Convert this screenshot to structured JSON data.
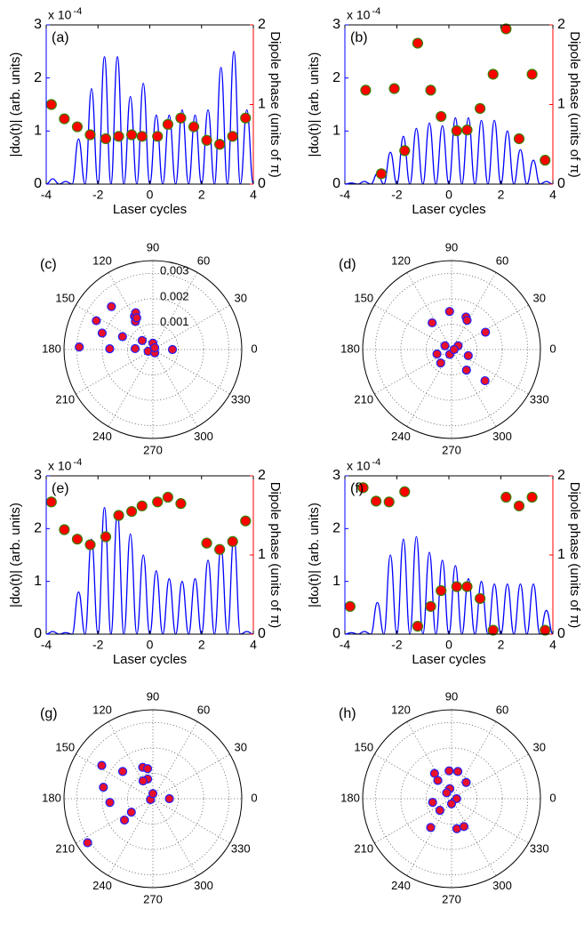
{
  "chart_data": [
    {
      "type": "dual",
      "panel_label": "(a)",
      "xlabel": "Laser cycles",
      "ylabel": "|dω(t)| (arb. units)",
      "y2label": "Dipole phase (units of π)",
      "multiplier": "x 10",
      "multiplier_exponent": "-4",
      "xlim": [
        -4,
        4
      ],
      "xticks": [
        -4,
        -2,
        0,
        2,
        4
      ],
      "ylim": [
        0,
        3
      ],
      "yticks": [
        0,
        1,
        2,
        3
      ],
      "y2lim": [
        0,
        2
      ],
      "y2ticks": [
        0,
        1,
        2
      ],
      "y_color": "#0000ff",
      "y2_color": "#ff0000",
      "series": [
        {
          "kind": "line",
          "color": "#0000ff",
          "x": [
            -4,
            -3.75,
            -3.5,
            -3.25,
            -3,
            -2.75,
            -2.5,
            -2.25,
            -2,
            -1.75,
            -1.5,
            -1.25,
            -1,
            -0.75,
            -0.5,
            -0.25,
            0,
            0.25,
            0.5,
            0.75,
            1,
            1.25,
            1.5,
            1.75,
            2,
            2.25,
            2.5,
            2.75,
            3,
            3.25,
            3.5,
            3.75,
            4
          ],
          "values": [
            0,
            0.1,
            0,
            0.05,
            0,
            0.85,
            0,
            1.8,
            0,
            2.4,
            0,
            2.4,
            0,
            1.65,
            0,
            1.9,
            0,
            1.3,
            0,
            1.3,
            0,
            1.4,
            0,
            1.3,
            0,
            1.4,
            0,
            2.2,
            0,
            2.5,
            0,
            1.4,
            0
          ]
        },
        {
          "kind": "scatter",
          "axis": "y2",
          "color": "#ff0000",
          "edge": "#3b7d00",
          "x": [
            -3.8,
            -3.3,
            -2.8,
            -2.3,
            -1.7,
            -1.2,
            -0.7,
            -0.3,
            0.3,
            0.7,
            1.2,
            1.7,
            2.2,
            2.7,
            3.2,
            3.7
          ],
          "values": [
            1.0,
            0.82,
            0.72,
            0.62,
            0.57,
            0.6,
            0.62,
            0.6,
            0.6,
            0.75,
            0.83,
            0.72,
            0.55,
            0.5,
            0.6,
            0.83
          ]
        }
      ]
    },
    {
      "type": "dual",
      "panel_label": "(b)",
      "xlabel": "Laser cycles",
      "ylabel": "|dω(t)| (arb. units)",
      "y2label": "Dipole phase (units of π)",
      "multiplier": "x 10",
      "multiplier_exponent": "-4",
      "xlim": [
        -4,
        4
      ],
      "xticks": [
        -4,
        -2,
        0,
        2,
        4
      ],
      "ylim": [
        0,
        3
      ],
      "yticks": [
        0,
        1,
        2,
        3
      ],
      "y2lim": [
        0,
        2
      ],
      "y2ticks": [
        0,
        1,
        2
      ],
      "y_color": "#0000ff",
      "y2_color": "#ff0000",
      "series": [
        {
          "kind": "line",
          "color": "#0000ff",
          "x": [
            -4,
            -3.75,
            -3.5,
            -3.25,
            -3,
            -2.75,
            -2.5,
            -2.25,
            -2,
            -1.75,
            -1.5,
            -1.25,
            -1,
            -0.75,
            -0.5,
            -0.25,
            0,
            0.25,
            0.5,
            0.75,
            1,
            1.25,
            1.5,
            1.75,
            2,
            2.25,
            2.5,
            2.75,
            3,
            3.25,
            3.5,
            3.75,
            4
          ],
          "values": [
            0,
            0.02,
            0,
            0.05,
            0,
            0.2,
            0,
            0.6,
            0,
            0.9,
            0,
            1.05,
            0,
            1.15,
            0,
            1.1,
            0,
            1.25,
            0,
            1.25,
            0,
            1.2,
            0,
            1.2,
            0,
            1.0,
            0,
            0.65,
            0,
            0.45,
            0,
            0.05,
            0
          ]
        },
        {
          "kind": "scatter",
          "axis": "y2",
          "color": "#ff0000",
          "edge": "#3b7d00",
          "x": [
            -3.2,
            -2.6,
            -2.1,
            -1.7,
            -1.2,
            -0.7,
            -0.3,
            0.3,
            0.7,
            1.2,
            1.7,
            2.2,
            2.7,
            3.2,
            3.7
          ],
          "values": [
            1.18,
            0.13,
            1.2,
            0.42,
            1.77,
            1.18,
            0.85,
            0.67,
            0.68,
            0.95,
            1.38,
            1.95,
            0.57,
            1.38,
            0.3
          ]
        }
      ]
    },
    {
      "type": "polar",
      "panel_label": "(c)",
      "rlim": [
        0,
        0.0035
      ],
      "rticks": [
        0.001,
        0.002,
        0.003
      ],
      "show_rtick_labels": true,
      "thetaticks": [
        0,
        30,
        60,
        90,
        120,
        150,
        180,
        210,
        240,
        270,
        300,
        330
      ],
      "color": "#e8102a",
      "edge": "#2020ff",
      "theta": [
        134,
        119,
        122,
        115,
        117,
        153,
        162,
        157,
        179,
        178,
        140,
        177,
        0,
        90,
        200,
        300,
        45
      ],
      "r": [
        0.00235,
        0.0015,
        0.0013,
        0.0016,
        0.0014,
        0.0025,
        0.0021,
        0.0013,
        0.0017,
        0.0029,
        0.00055,
        0.0007,
        0.00077,
        0.00025,
        0.0002,
        0.00015,
        0.0001
      ]
    },
    {
      "type": "polar",
      "panel_label": "(d)",
      "rlim": [
        0,
        0.0035
      ],
      "rticks": [
        0.001,
        0.002,
        0.003
      ],
      "show_rtick_labels": false,
      "thetaticks": [
        0,
        30,
        60,
        90,
        120,
        150,
        180,
        210,
        240,
        270,
        300,
        330
      ],
      "color": "#e8102a",
      "edge": "#2020ff",
      "theta": [
        93,
        27,
        66,
        62,
        126,
        197,
        231,
        340,
        306,
        317,
        150,
        30,
        250,
        0
      ],
      "r": [
        0.0015,
        0.0015,
        0.0014,
        0.0013,
        0.0013,
        0.0006,
        0.00068,
        0.0007,
        0.001,
        0.0018,
        0.0003,
        0.0003,
        0.0002,
        0.0001
      ]
    },
    {
      "type": "dual",
      "panel_label": "(e)",
      "xlabel": "Laser cycles",
      "ylabel": "|dω(t)| (arb. units)",
      "y2label": "Dipole phase (units of π)",
      "multiplier": "x 10",
      "multiplier_exponent": "-4",
      "xlim": [
        -4,
        4
      ],
      "xticks": [
        -4,
        -2,
        0,
        2,
        4
      ],
      "ylim": [
        0,
        3
      ],
      "yticks": [
        0,
        1,
        2,
        3
      ],
      "y2lim": [
        0,
        2
      ],
      "y2ticks": [
        0,
        1,
        2
      ],
      "y_color": "#0000ff",
      "y2_color": "#ff0000",
      "series": [
        {
          "kind": "line",
          "color": "#0000ff",
          "x": [
            -4,
            -3.75,
            -3.5,
            -3.25,
            -3,
            -2.75,
            -2.5,
            -2.25,
            -2,
            -1.75,
            -1.5,
            -1.25,
            -1,
            -0.75,
            -0.5,
            -0.25,
            0,
            0.25,
            0.5,
            0.75,
            1,
            1.25,
            1.5,
            1.75,
            2,
            2.25,
            2.5,
            2.75,
            3,
            3.25,
            3.5,
            3.75,
            4
          ],
          "values": [
            0,
            0.05,
            0,
            0.03,
            0,
            0.8,
            0,
            1.8,
            0,
            2.4,
            0,
            2.3,
            0,
            1.9,
            0,
            1.5,
            0,
            1.2,
            0,
            1.05,
            0,
            1.0,
            0,
            1.05,
            0,
            1.4,
            0,
            1.65,
            0,
            1.85,
            0,
            0.05,
            0
          ]
        },
        {
          "kind": "scatter",
          "axis": "y2",
          "color": "#ff0000",
          "edge": "#3b7d00",
          "x": [
            -3.8,
            -3.3,
            -2.8,
            -2.3,
            -1.7,
            -1.2,
            -0.7,
            -0.3,
            0.3,
            0.7,
            1.2,
            2.2,
            2.7,
            3.2,
            3.7
          ],
          "values": [
            1.67,
            1.32,
            1.2,
            1.13,
            1.23,
            1.5,
            1.55,
            1.62,
            1.67,
            1.73,
            1.65,
            1.15,
            1.07,
            1.17,
            1.43
          ]
        }
      ]
    },
    {
      "type": "dual",
      "panel_label": "(f)",
      "xlabel": "Laser cycles",
      "ylabel": "|dω(t)| (arb. units)",
      "y2label": "Dipole phase (units of π)",
      "multiplier": "x 10",
      "multiplier_exponent": "-4",
      "xlim": [
        -4,
        4
      ],
      "xticks": [
        -4,
        -2,
        0,
        2,
        4
      ],
      "ylim": [
        0,
        3
      ],
      "yticks": [
        0,
        1,
        2,
        3
      ],
      "y2lim": [
        0,
        2
      ],
      "y2ticks": [
        0,
        1,
        2
      ],
      "y_color": "#0000ff",
      "y2_color": "#ff0000",
      "series": [
        {
          "kind": "line",
          "color": "#0000ff",
          "x": [
            -4,
            -3.75,
            -3.5,
            -3.25,
            -3,
            -2.75,
            -2.5,
            -2.25,
            -2,
            -1.75,
            -1.5,
            -1.25,
            -1,
            -0.75,
            -0.5,
            -0.25,
            0,
            0.25,
            0.5,
            0.75,
            1,
            1.25,
            1.5,
            1.75,
            2,
            2.25,
            2.5,
            2.75,
            3,
            3.25,
            3.5,
            3.75,
            4
          ],
          "values": [
            0,
            0.03,
            0,
            0.05,
            0,
            0.6,
            0,
            1.5,
            0,
            1.8,
            0,
            1.85,
            0,
            1.55,
            0,
            1.4,
            0,
            1.3,
            0,
            1.05,
            0,
            1.0,
            0,
            0.95,
            0,
            0.95,
            0,
            0.95,
            0,
            0.95,
            0,
            0.45,
            0
          ]
        },
        {
          "kind": "scatter",
          "axis": "y2",
          "color": "#ff0000",
          "edge": "#3b7d00",
          "x": [
            -3.8,
            -3.3,
            -2.8,
            -2.3,
            -1.7,
            -1.2,
            -0.7,
            -0.3,
            0.3,
            0.7,
            1.2,
            1.7,
            2.2,
            2.7,
            3.2,
            3.7
          ],
          "values": [
            0.35,
            1.85,
            1.68,
            1.67,
            1.8,
            0.1,
            0.35,
            0.55,
            0.6,
            0.6,
            0.45,
            0.05,
            1.73,
            1.62,
            1.73,
            0.05
          ]
        }
      ]
    },
    {
      "type": "polar",
      "panel_label": "(g)",
      "rlim": [
        0,
        0.0035
      ],
      "rticks": [
        0.001,
        0.002,
        0.003
      ],
      "show_rtick_labels": false,
      "thetaticks": [
        0,
        30,
        60,
        90,
        120,
        150,
        180,
        210,
        240,
        270,
        300,
        330
      ],
      "color": "#e8102a",
      "edge": "#2020ff",
      "theta": [
        147,
        138,
        108,
        100,
        105,
        167,
        185,
        212,
        217,
        214,
        0,
        119,
        200,
        90
      ],
      "r": [
        0.0024,
        0.0016,
        0.0013,
        0.0012,
        0.0008,
        0.002,
        0.0017,
        0.001,
        0.0014,
        0.0031,
        0.00065,
        0.0008,
        0.0001,
        0.0002
      ]
    },
    {
      "type": "polar",
      "panel_label": "(h)",
      "rlim": [
        0,
        0.0035
      ],
      "rticks": [
        0.001,
        0.002,
        0.003
      ],
      "show_rtick_labels": false,
      "thetaticks": [
        0,
        30,
        60,
        90,
        120,
        150,
        180,
        210,
        240,
        270,
        300,
        330
      ],
      "color": "#e8102a",
      "edge": "#2020ff",
      "theta": [
        124,
        95,
        77,
        48,
        127,
        191,
        225,
        234,
        280,
        294,
        100,
        130,
        0,
        270
      ],
      "r": [
        0.0012,
        0.0011,
        0.0011,
        0.00086,
        0.0009,
        0.00076,
        0.00065,
        0.0014,
        0.0012,
        0.0012,
        0.0004,
        0.0003,
        0.0002,
        0.0002
      ]
    }
  ]
}
